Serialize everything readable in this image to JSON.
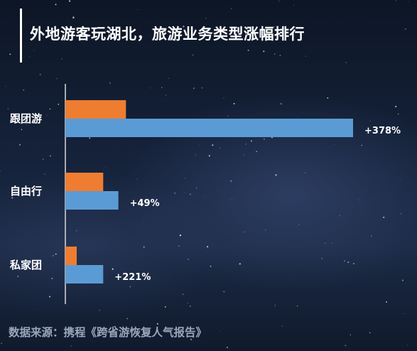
{
  "title": "外地游客玩湖北，旅游业务类型涨幅排行",
  "source": "数据来源：携程《跨省游恢复人气报告》",
  "colors": {
    "orange": "#ee7d31",
    "blue": "#5b9bd5",
    "axis": "#d9d9d9"
  },
  "chart_data": {
    "type": "bar",
    "orientation": "horizontal",
    "categories": [
      "跟团游",
      "自由行",
      "私家团"
    ],
    "series": [
      {
        "values": [
          16,
          10,
          3
        ],
        "color": "#ee7d31"
      },
      {
        "values": [
          76,
          14,
          10
        ],
        "color": "#5b9bd5",
        "labels": [
          "+378%",
          "+49%",
          "+221%"
        ]
      }
    ],
    "xlim": [
      0,
      80
    ],
    "grid": false,
    "legend": "none"
  }
}
